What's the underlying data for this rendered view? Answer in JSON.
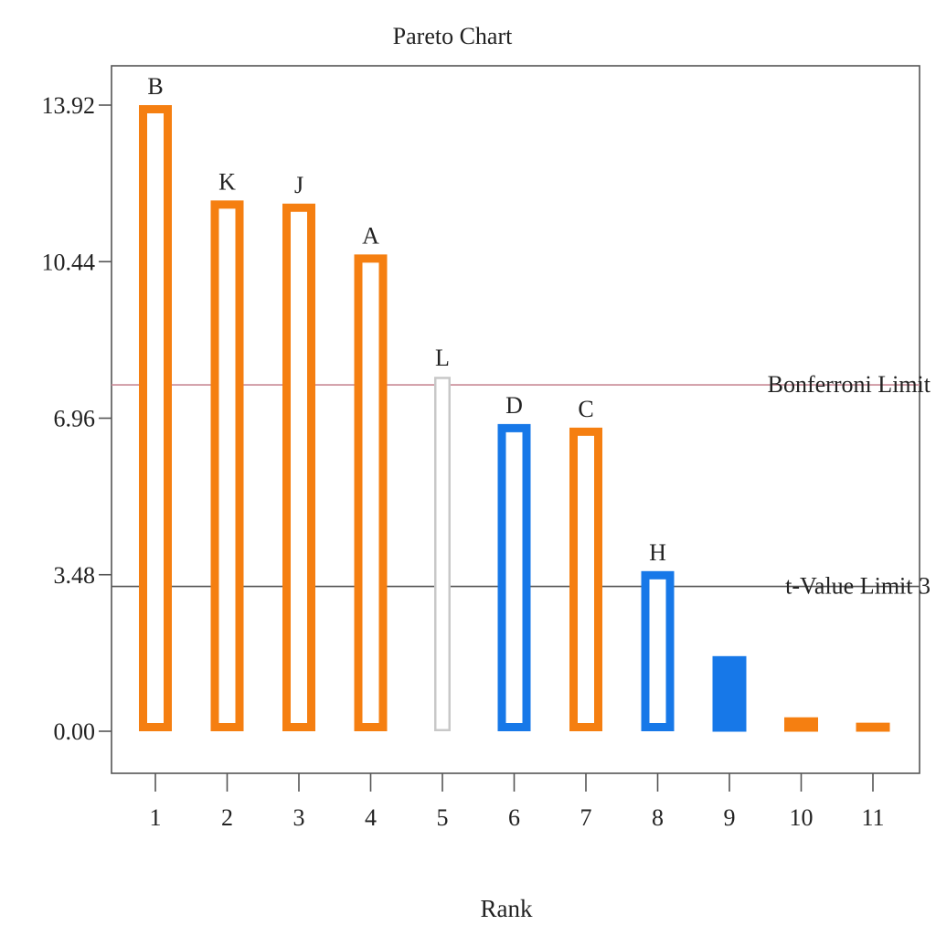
{
  "chart_data": {
    "type": "bar",
    "title": "Pareto Chart",
    "xlabel": "Rank",
    "ylabel": "",
    "ylim": [
      0,
      15.0
    ],
    "yticks": [
      "0.00",
      "3.48",
      "6.96",
      "10.44",
      "13.92"
    ],
    "ytick_values": [
      0.0,
      3.48,
      6.96,
      10.44,
      13.92
    ],
    "categories": [
      "1",
      "2",
      "3",
      "4",
      "5",
      "6",
      "7",
      "8",
      "9",
      "10",
      "11"
    ],
    "bar_labels": [
      "B",
      "K",
      "J",
      "A",
      "L",
      "D",
      "C",
      "H",
      "",
      "",
      ""
    ],
    "values": [
      13.92,
      11.8,
      11.73,
      10.6,
      7.88,
      6.83,
      6.75,
      3.56,
      1.66,
      0.3,
      0.18
    ],
    "bar_styles": [
      "outline",
      "outline",
      "outline",
      "outline",
      "outline",
      "outline",
      "outline",
      "outline",
      "filled",
      "filled",
      "filled"
    ],
    "bar_colors": [
      "#f57f11",
      "#f57f11",
      "#f57f11",
      "#f57f11",
      "#c8c8c8",
      "#1778e8",
      "#f57f11",
      "#1778e8",
      "#1778e8",
      "#f57f11",
      "#f57f11"
    ],
    "reference_lines": [
      {
        "label": "Bonferroni Limit",
        "value": 7.7,
        "color": "#c98a96"
      },
      {
        "label": "t-Value Limit 3",
        "value": 3.22,
        "color": "#555555"
      }
    ],
    "grid": false,
    "legend": "none"
  }
}
